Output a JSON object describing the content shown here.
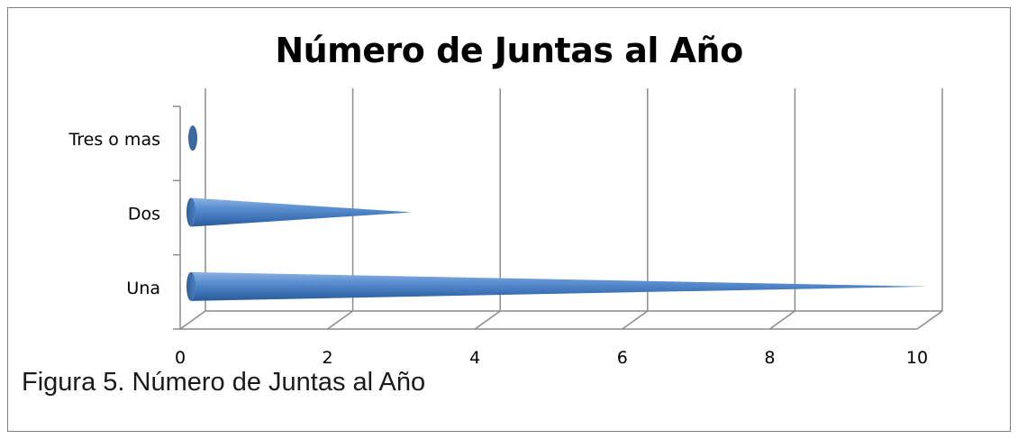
{
  "chart_data": {
    "type": "bar",
    "orientation": "horizontal",
    "style": "3d-cone",
    "title": "Número de Juntas al Año",
    "categories": [
      "Una",
      "Dos",
      "Tres o mas"
    ],
    "values": [
      10,
      3,
      0.1
    ],
    "xlim": [
      0,
      10
    ],
    "x_ticks": [
      "0",
      "2",
      "4",
      "6",
      "8",
      "10"
    ],
    "grid": true,
    "legend": "none",
    "bar_color": "#4f81bd"
  },
  "caption": "Figura 5. Número de Juntas al Año"
}
